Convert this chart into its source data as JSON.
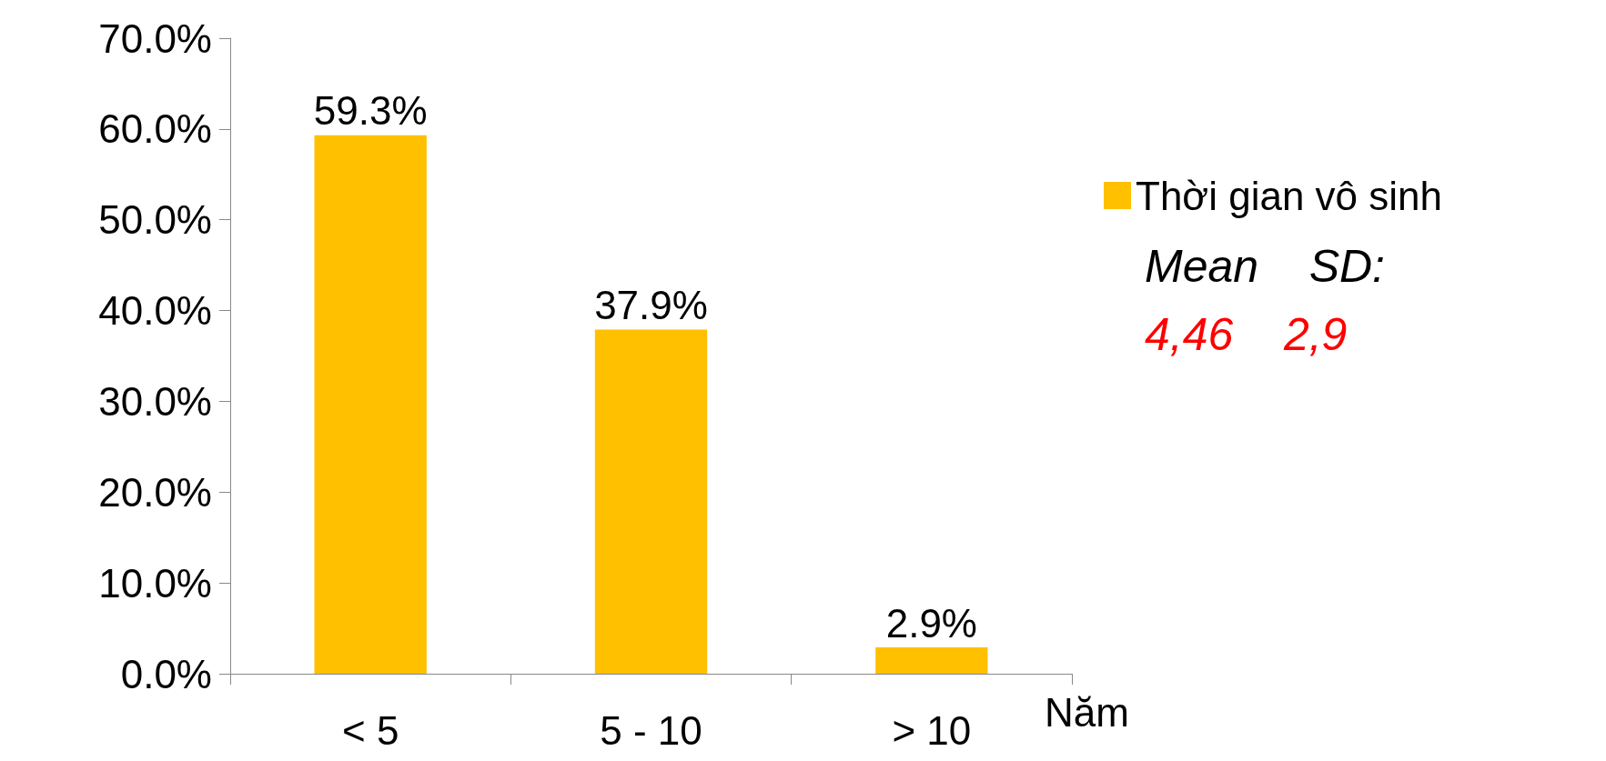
{
  "chart_data": {
    "type": "bar",
    "categories": [
      "< 5",
      "5 - 10",
      "> 10"
    ],
    "xlabel": "Năm",
    "series": [
      {
        "name": "Thời gian vô sinh",
        "color": "#ffc000",
        "values": [
          59.3,
          37.9,
          2.9
        ],
        "value_labels": [
          "59.3%",
          "37.9%",
          "2.9%"
        ]
      }
    ],
    "ylim": [
      0,
      70
    ],
    "yticks": [
      {
        "value": 0,
        "label": "0.0%"
      },
      {
        "value": 10,
        "label": "10.0%"
      },
      {
        "value": 20,
        "label": "20.0%"
      },
      {
        "value": 30,
        "label": "30.0%"
      },
      {
        "value": 40,
        "label": "40.0%"
      },
      {
        "value": 50,
        "label": "50.0%"
      },
      {
        "value": 60,
        "label": "60.0%"
      },
      {
        "value": 70,
        "label": "70.0%"
      }
    ],
    "grid": false,
    "legend": "right",
    "annotations": [
      "Mean    SD:",
      "4,46    2,9"
    ]
  }
}
